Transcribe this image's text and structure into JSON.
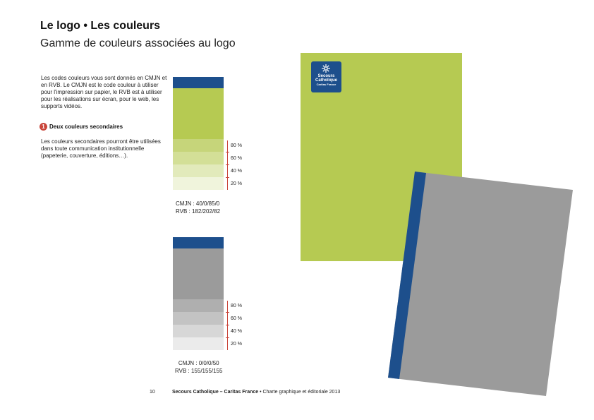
{
  "header": {
    "title": "Le logo • Les couleurs",
    "subtitle": "Gamme de couleurs associées au logo"
  },
  "intro_text": "Les codes couleurs vous sont donnés en CMJN et en RVB. Le CMJN est le code couleur à utiliser pour l'impression sur papier, le RVB est à utiliser pour les réalisations sur écran, pour le web, les supports vidéos.",
  "section": {
    "number": "1",
    "heading": "Deux couleurs secondaires",
    "body": "Les couleurs secondaires pourront être utilisées dans toute communication institutionnelle (papeterie, couverture, éditions…)."
  },
  "swatches": [
    {
      "name": "green",
      "cmjn": "CMJN : 40/0/85/0",
      "rvb": "RVB : 182/202/82",
      "tints": [
        "80 %",
        "60 %",
        "40 %",
        "20 %"
      ]
    },
    {
      "name": "gray",
      "cmjn": "CMJN : 0/0/0/50",
      "rvb": "RVB : 155/155/155",
      "tints": [
        "80 %",
        "60 %",
        "40 %",
        "20 %"
      ]
    }
  ],
  "logo": {
    "line1": "Secours",
    "line2": "Catholique",
    "line3": "Caritas France"
  },
  "footer": {
    "page_number": "10",
    "brand": "Secours Catholique – Caritas France",
    "doc": " • Charte graphique et éditoriale 2013"
  },
  "colors": {
    "blue": "#1d4f8c",
    "green": "#b6ca52",
    "gray": "#9b9b9b",
    "accent_red": "#c9453a"
  }
}
